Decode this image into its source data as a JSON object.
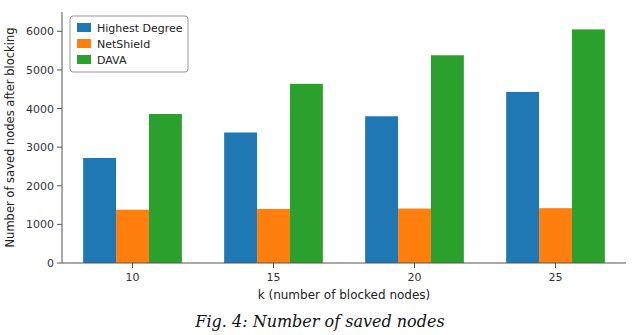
{
  "chart_data": {
    "type": "bar",
    "xlabel": "k (number of blocked nodes)",
    "ylabel": "Number of saved nodes after blocking",
    "caption": "Fig. 4: Number of saved nodes",
    "categories": [
      "10",
      "15",
      "20",
      "25"
    ],
    "series": [
      {
        "name": "Highest Degree",
        "color": "#1f77b4",
        "values": [
          2720,
          3380,
          3800,
          4430
        ]
      },
      {
        "name": "NetShield",
        "color": "#ff7f0e",
        "values": [
          1380,
          1400,
          1410,
          1420
        ]
      },
      {
        "name": "DAVA",
        "color": "#2ca02c",
        "values": [
          3860,
          4640,
          5380,
          6050
        ]
      }
    ],
    "ylim": [
      0,
      6500
    ],
    "yticks": [
      0,
      1000,
      2000,
      3000,
      4000,
      5000,
      6000
    ],
    "grid": false,
    "legend": "upper left"
  }
}
